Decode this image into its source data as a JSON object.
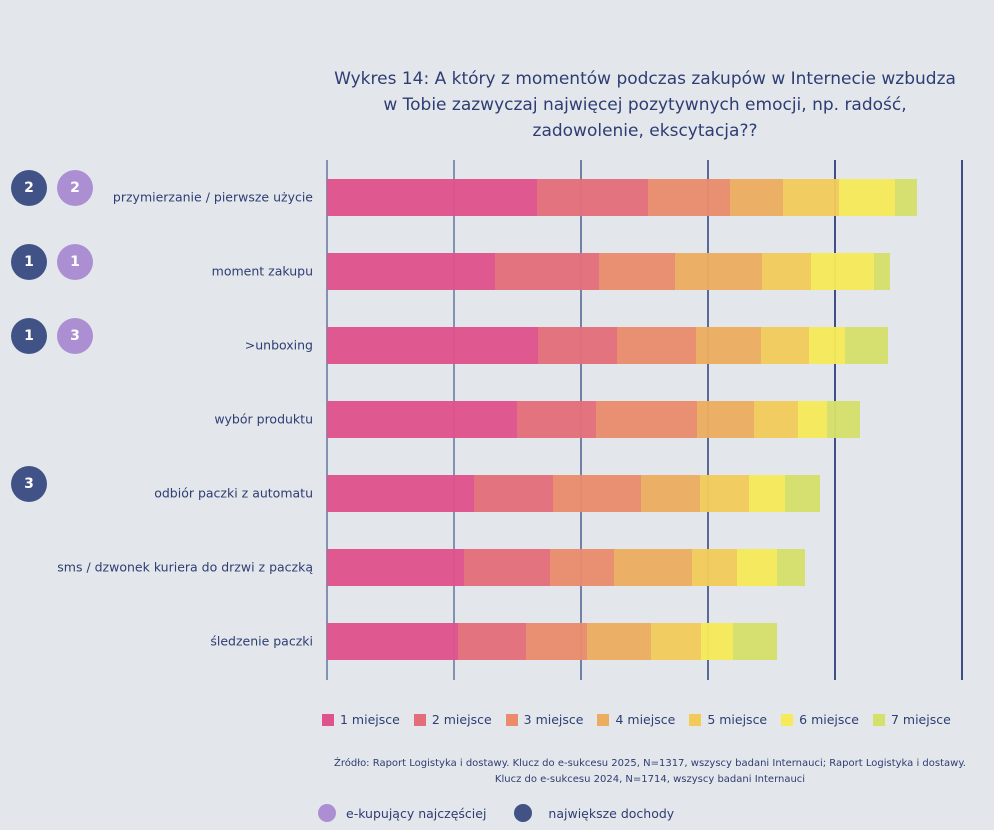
{
  "chart_data": {
    "type": "bar",
    "orientation": "horizontal",
    "stacked": true,
    "title": "Wykres 14: A który z momentów podczas zakupów w Internecie wzbudza w Tobie zazwyczaj najwięcej pozytywnych emocji, np. radość, zadowolenie, ekscytacja??",
    "title_lines": [
      "Wykres 14: A który z momentów podczas zakupów w Internecie wzbudza",
      "w Tobie zazwyczaj najwięcej pozytywnych emocji, np. radość,",
      "zadowolenie, ekscytacja??"
    ],
    "xlabel": "",
    "ylabel": "",
    "xlim": [
      0,
      100
    ],
    "grid": true,
    "categories": [
      "przymierzanie / pierwsze użycie",
      "moment zakupu",
      ">unboxing",
      "wybór produktu",
      "odbiór paczki z automatu",
      "sms / dzwonek kuriera do drzwi z paczką",
      "śledzenie paczki"
    ],
    "series": [
      {
        "name": "1 miejsce",
        "color": "#e0528b",
        "values": [
          33.1,
          26.5,
          33.2,
          29.9,
          23.1,
          21.6,
          20.7
        ]
      },
      {
        "name": "2 miejsce",
        "color": "#e36e79",
        "values": [
          17.4,
          16.4,
          12.4,
          12.5,
          12.5,
          13.5,
          10.6
        ]
      },
      {
        "name": "3 miejsce",
        "color": "#e98b6c",
        "values": [
          13.0,
          11.9,
          12.5,
          15.8,
          13.8,
          10.1,
          9.6
        ]
      },
      {
        "name": "4 miejsce",
        "color": "#ebad60",
        "values": [
          8.3,
          13.7,
          10.2,
          9.1,
          9.4,
          12.3,
          10.2
        ]
      },
      {
        "name": "5 miejsce",
        "color": "#f1cb5a",
        "values": [
          8.8,
          7.7,
          7.6,
          6.8,
          7.6,
          7.1,
          7.8
        ]
      },
      {
        "name": "6 miejsce",
        "color": "#f6ea58",
        "values": [
          8.8,
          9.9,
          5.6,
          4.6,
          5.7,
          6.3,
          5.1
        ]
      },
      {
        "name": "7 miejsce",
        "color": "#d4e06a",
        "values": [
          3.5,
          2.5,
          6.8,
          5.3,
          5.5,
          4.4,
          6.8
        ]
      }
    ],
    "legend_position": "bottom",
    "badges": [
      {
        "dochody": "2",
        "ekupujacy": "2"
      },
      {
        "dochody": "1",
        "ekupujacy": "1"
      },
      {
        "dochody": "1",
        "ekupujacy": "3"
      },
      {
        "dochody": null,
        "ekupujacy": null
      },
      {
        "dochody": "3",
        "ekupujacy": null
      },
      {
        "dochody": null,
        "ekupujacy": null
      },
      {
        "dochody": null,
        "ekupujacy": null
      }
    ]
  },
  "source": "Źródło: Raport Logistyka i dostawy. Klucz do e-sukcesu 2025, N=1317, wszyscy badani Internauci; Raport Logistyka i dostawy. Klucz do e-sukcesu 2024, N=1714, wszyscy badani Internauci",
  "badge_legend": {
    "ekupujacy": {
      "label": "e-kupujący najczęściej",
      "color": "#ac8fd3"
    },
    "dochody": {
      "label": "największe dochody",
      "color": "#415386"
    }
  }
}
